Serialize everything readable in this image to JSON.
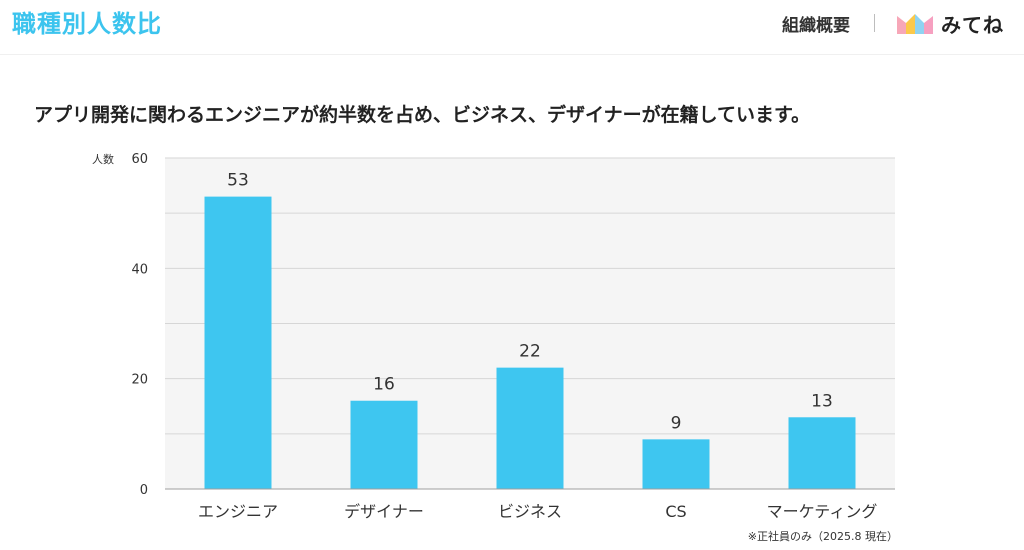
{
  "header": {
    "title": "職種別人数比",
    "section_label": "組織概要",
    "logo_text": "みてね",
    "logo_icon": "mitene-logo-icon"
  },
  "headline": "アプリ開発に関わるエンジニアが約半数を占め、ビジネス、デザイナーが在籍しています。",
  "note": "※正社員のみ（2025.8 現在）",
  "colors": {
    "title": "#3cc4ee",
    "bar": "#3ec6f0",
    "plot_background": "#f5f5f5",
    "grid": "#d6d6d6"
  },
  "chart_data": {
    "type": "bar",
    "ylabel": "人数",
    "ylim": [
      0,
      60
    ],
    "yticks": [
      0,
      20,
      40,
      60
    ],
    "grid": true,
    "categories": [
      "エンジニア",
      "デザイナー",
      "ビジネス",
      "CS",
      "マーケティング"
    ],
    "values": [
      53,
      16,
      22,
      9,
      13
    ],
    "data_labels": [
      "53",
      "16",
      "22",
      "9",
      "13"
    ]
  }
}
